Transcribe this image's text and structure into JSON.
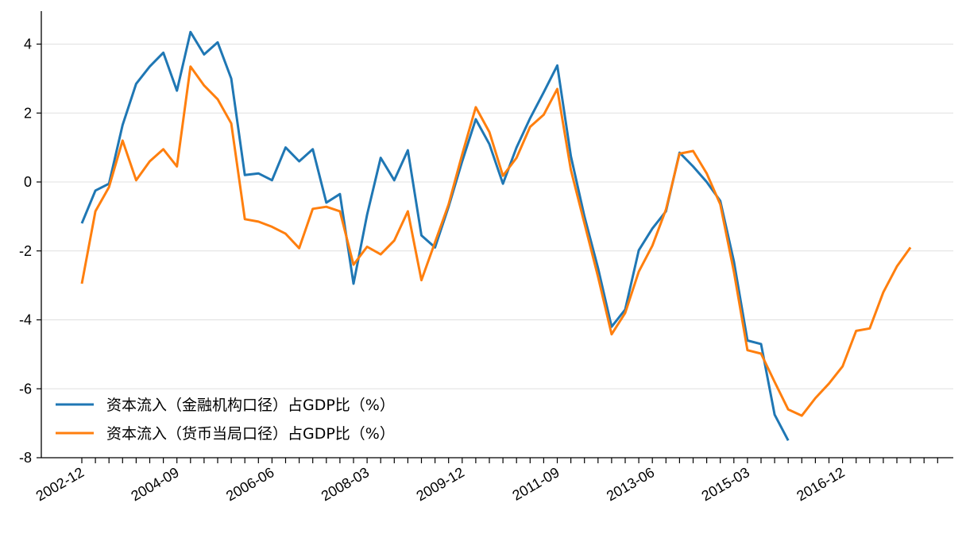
{
  "chart_data": {
    "type": "line",
    "title": "",
    "xlabel": "",
    "ylabel": "",
    "ylim": [
      -8,
      5
    ],
    "yticks": [
      -8,
      -6,
      -4,
      -2,
      0,
      2,
      4
    ],
    "grid": "horizontal",
    "legend_position": "lower-left",
    "x": [
      "2002-12",
      "2003-03",
      "2003-06",
      "2003-09",
      "2003-12",
      "2004-03",
      "2004-06",
      "2004-09",
      "2004-12",
      "2005-03",
      "2005-06",
      "2005-09",
      "2005-12",
      "2006-03",
      "2006-06",
      "2006-09",
      "2006-12",
      "2007-03",
      "2007-06",
      "2007-09",
      "2007-12",
      "2008-03",
      "2008-06",
      "2008-09",
      "2008-12",
      "2009-03",
      "2009-06",
      "2009-09",
      "2009-12",
      "2010-03",
      "2010-06",
      "2010-09",
      "2010-12",
      "2011-03",
      "2011-06",
      "2011-09",
      "2011-12",
      "2012-03",
      "2012-06",
      "2012-09",
      "2012-12",
      "2013-03",
      "2013-06",
      "2013-09",
      "2013-12",
      "2014-03",
      "2014-06",
      "2014-09",
      "2014-12",
      "2015-03",
      "2015-06",
      "2015-09",
      "2015-12",
      "2016-03",
      "2016-06",
      "2016-09",
      "2016-12",
      "2017-03",
      "2017-06",
      "2017-09",
      "2017-12",
      "2018-03",
      "2018-06",
      "2018-09"
    ],
    "xtick_labels": [
      "2002-12",
      "2004-09",
      "2006-06",
      "2008-03",
      "2009-12",
      "2011-09",
      "2013-06",
      "2015-03",
      "2016-12"
    ],
    "series": [
      {
        "name": "资本流入（金融机构口径）占GDP比（%）",
        "color": "#1f77b4",
        "values": [
          -1.2,
          -0.25,
          -0.05,
          1.65,
          2.85,
          3.35,
          3.75,
          2.65,
          4.35,
          3.7,
          4.05,
          3.0,
          0.2,
          0.25,
          0.05,
          1.0,
          0.6,
          0.95,
          -0.6,
          -0.35,
          -2.95,
          -0.95,
          0.7,
          0.05,
          0.92,
          -1.55,
          -1.9,
          -0.72,
          0.6,
          1.82,
          1.1,
          -0.05,
          1.0,
          1.85,
          2.6,
          3.38,
          0.75,
          -1.0,
          -2.5,
          -4.2,
          -3.7,
          -1.98,
          -1.35,
          -0.85,
          0.85,
          0.45,
          0.0,
          -0.55,
          -2.3,
          -4.6,
          -4.7,
          -6.75,
          -7.5,
          null,
          null,
          null,
          null,
          null,
          null,
          null,
          null,
          null,
          null,
          null
        ]
      },
      {
        "name": "资本流入（货币当局口径）占GDP比（%）",
        "color": "#ff7f0e",
        "values": [
          -2.95,
          -0.85,
          -0.15,
          1.2,
          0.05,
          0.6,
          0.95,
          0.45,
          3.35,
          2.8,
          2.4,
          1.7,
          -1.08,
          -1.15,
          -1.3,
          -1.5,
          -1.92,
          -0.78,
          -0.72,
          -0.85,
          -2.4,
          -1.88,
          -2.1,
          -1.7,
          -0.85,
          -2.85,
          -1.75,
          -0.65,
          0.8,
          2.17,
          1.45,
          0.18,
          0.7,
          1.6,
          1.95,
          2.7,
          0.35,
          -1.2,
          -2.75,
          -4.42,
          -3.8,
          -2.6,
          -1.85,
          -0.8,
          0.82,
          0.9,
          0.25,
          -0.65,
          -2.6,
          -4.88,
          -4.98,
          -5.8,
          -6.6,
          -6.78,
          -6.27,
          -5.85,
          -5.35,
          -4.32,
          -4.25,
          -3.2,
          -2.45,
          -1.9,
          null,
          null
        ]
      }
    ]
  }
}
